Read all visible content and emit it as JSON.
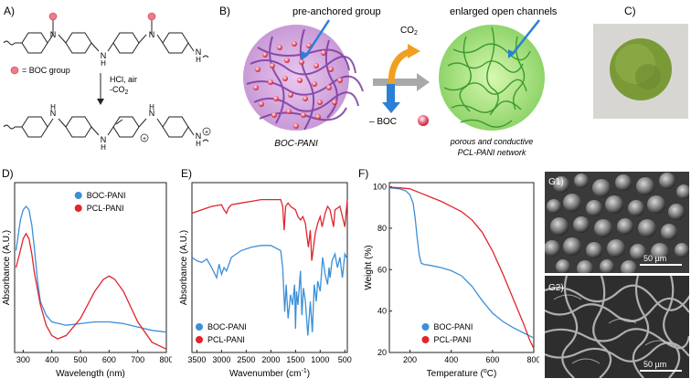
{
  "panels": {
    "a": {
      "label": "A)",
      "boc_legend": "= BOC group",
      "reaction": [
        "HCl, air",
        "-CO",
        "2"
      ],
      "nh_top": "N",
      "nh_top_h": "H"
    },
    "b": {
      "label": "B)",
      "pre_anchored": "pre-anchored group",
      "enlarged": "enlarged open channels",
      "co2": "CO",
      "co2_sub": "2",
      "minus_boc": "– BOC",
      "left_caption": "BOC-PANI",
      "right_caption_1": "porous and conductive",
      "right_caption_2": "PCL-PANI network"
    },
    "c": {
      "label": "C)"
    },
    "g": {
      "g1": "G1)",
      "g2": "G2)",
      "scale1": "50 µm",
      "scale2": "50 µm"
    }
  },
  "colors": {
    "boc": "#3b8fd9",
    "pcl": "#e2242e",
    "purple": "#7a3aa0",
    "green": "#5aa83c",
    "orange": "#f0a020",
    "grey": "#9a9a9a"
  },
  "chart_data": [
    {
      "id": "D",
      "label": "D)",
      "type": "line",
      "xlabel": "Wavelength (nm)",
      "ylabel": "Absorbance (A.U.)",
      "xlim": [
        270,
        800
      ],
      "ylim": [
        0,
        1
      ],
      "xticks": [
        300,
        400,
        500,
        600,
        700,
        800
      ],
      "legend": "top-right",
      "series": [
        {
          "name": "BOC-PANI",
          "color": "#3b8fd9",
          "x": [
            275,
            290,
            300,
            310,
            320,
            330,
            340,
            350,
            360,
            380,
            400,
            450,
            500,
            550,
            600,
            650,
            700,
            750,
            800
          ],
          "y": [
            0.6,
            0.78,
            0.84,
            0.86,
            0.84,
            0.75,
            0.6,
            0.42,
            0.3,
            0.22,
            0.18,
            0.16,
            0.17,
            0.18,
            0.18,
            0.17,
            0.15,
            0.13,
            0.12
          ]
        },
        {
          "name": "PCL-PANI",
          "color": "#e2242e",
          "x": [
            275,
            290,
            300,
            310,
            320,
            330,
            340,
            360,
            380,
            400,
            420,
            450,
            500,
            550,
            580,
            600,
            620,
            650,
            700,
            750,
            800
          ],
          "y": [
            0.5,
            0.6,
            0.67,
            0.7,
            0.67,
            0.58,
            0.46,
            0.28,
            0.16,
            0.1,
            0.08,
            0.1,
            0.2,
            0.36,
            0.43,
            0.45,
            0.43,
            0.36,
            0.18,
            0.06,
            0.02
          ]
        }
      ]
    },
    {
      "id": "E",
      "label": "E)",
      "type": "line",
      "xlabel": "Wavenumber (cm",
      "xlabel_sup": "-1",
      "xlabel_end": ")",
      "ylabel": "Absorbance (A.U.)",
      "xlim": [
        3600,
        450
      ],
      "ylim": [
        0,
        1
      ],
      "xticks": [
        3500,
        3000,
        2500,
        2000,
        1500,
        1000,
        500
      ],
      "legend": "bottom-left",
      "series": [
        {
          "name": "BOC-PANI",
          "color": "#3b8fd9",
          "x": [
            3600,
            3500,
            3400,
            3300,
            3200,
            3100,
            3050,
            3000,
            2950,
            2900,
            2800,
            2600,
            2400,
            2200,
            2000,
            1800,
            1760,
            1720,
            1690,
            1650,
            1600,
            1560,
            1520,
            1500,
            1480,
            1450,
            1400,
            1370,
            1340,
            1300,
            1250,
            1200,
            1160,
            1120,
            1080,
            1050,
            1000,
            950,
            900,
            850,
            820,
            800,
            760,
            700,
            650,
            600,
            550,
            500,
            450
          ],
          "y": [
            0.56,
            0.54,
            0.53,
            0.55,
            0.5,
            0.44,
            0.52,
            0.46,
            0.5,
            0.48,
            0.56,
            0.6,
            0.62,
            0.63,
            0.63,
            0.6,
            0.5,
            0.24,
            0.4,
            0.2,
            0.34,
            0.28,
            0.4,
            0.14,
            0.36,
            0.28,
            0.48,
            0.22,
            0.38,
            0.3,
            0.1,
            0.3,
            0.12,
            0.4,
            0.3,
            0.42,
            0.36,
            0.56,
            0.46,
            0.4,
            0.5,
            0.44,
            0.54,
            0.58,
            0.5,
            0.56,
            0.44,
            0.58,
            0.55
          ]
        },
        {
          "name": "PCL-PANI",
          "color": "#e2242e",
          "x": [
            3600,
            3400,
            3200,
            3000,
            2950,
            2900,
            2860,
            2800,
            2600,
            2400,
            2200,
            2000,
            1800,
            1760,
            1730,
            1700,
            1650,
            1600,
            1500,
            1450,
            1400,
            1350,
            1300,
            1240,
            1200,
            1170,
            1100,
            1050,
            1000,
            960,
            900,
            850,
            800,
            730,
            700,
            600,
            500,
            450
          ],
          "y": [
            0.82,
            0.84,
            0.86,
            0.87,
            0.84,
            0.82,
            0.85,
            0.87,
            0.88,
            0.89,
            0.9,
            0.9,
            0.9,
            0.86,
            0.72,
            0.86,
            0.88,
            0.86,
            0.84,
            0.8,
            0.78,
            0.8,
            0.76,
            0.62,
            0.72,
            0.54,
            0.7,
            0.76,
            0.8,
            0.74,
            0.82,
            0.86,
            0.84,
            0.74,
            0.84,
            0.86,
            0.74,
            0.9
          ]
        }
      ]
    },
    {
      "id": "F",
      "label": "F)",
      "type": "line",
      "xlabel": "Temperature (",
      "xlabel_sup": "o",
      "xlabel_end": "C)",
      "ylabel": "Weight (%)",
      "xlim": [
        100,
        800
      ],
      "ylim": [
        20,
        102
      ],
      "xticks": [
        200,
        400,
        600,
        800
      ],
      "yticks": [
        20,
        40,
        60,
        80,
        100
      ],
      "legend": "bottom-center",
      "series": [
        {
          "name": "BOC-PANI",
          "color": "#3b8fd9",
          "x": [
            100,
            150,
            180,
            200,
            215,
            225,
            235,
            245,
            255,
            270,
            300,
            350,
            400,
            450,
            500,
            550,
            600,
            650,
            700,
            750,
            800
          ],
          "y": [
            99.5,
            99,
            98,
            96,
            92,
            85,
            75,
            67,
            63,
            62.5,
            62,
            61,
            59.5,
            57,
            52,
            45,
            39,
            35,
            32,
            29.5,
            27
          ]
        },
        {
          "name": "PCL-PANI",
          "color": "#e2242e",
          "x": [
            100,
            150,
            200,
            250,
            300,
            350,
            400,
            450,
            500,
            550,
            600,
            650,
            700,
            750,
            780,
            800
          ],
          "y": [
            99.8,
            99.5,
            99,
            97,
            95,
            93,
            90.5,
            88,
            84,
            78,
            69,
            58,
            46,
            34,
            26,
            22
          ]
        }
      ]
    }
  ]
}
